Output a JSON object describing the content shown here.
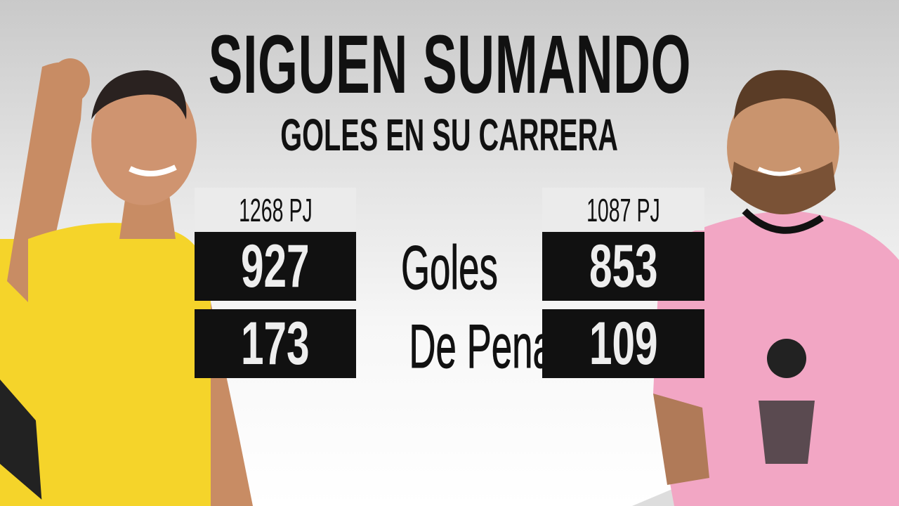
{
  "header": {
    "title": "SIGUEN SUMANDO",
    "subtitle": "GOLES EN SU CARRERA"
  },
  "left_player": {
    "games": "1268 PJ",
    "goals": "927",
    "penalties": "173",
    "kit_color": "#f5d42a"
  },
  "right_player": {
    "games": "1087 PJ",
    "goals": "853",
    "penalties": "109",
    "kit_color": "#f2a6c4"
  },
  "labels": {
    "goals": "Goles",
    "penalties": "De Penal"
  }
}
